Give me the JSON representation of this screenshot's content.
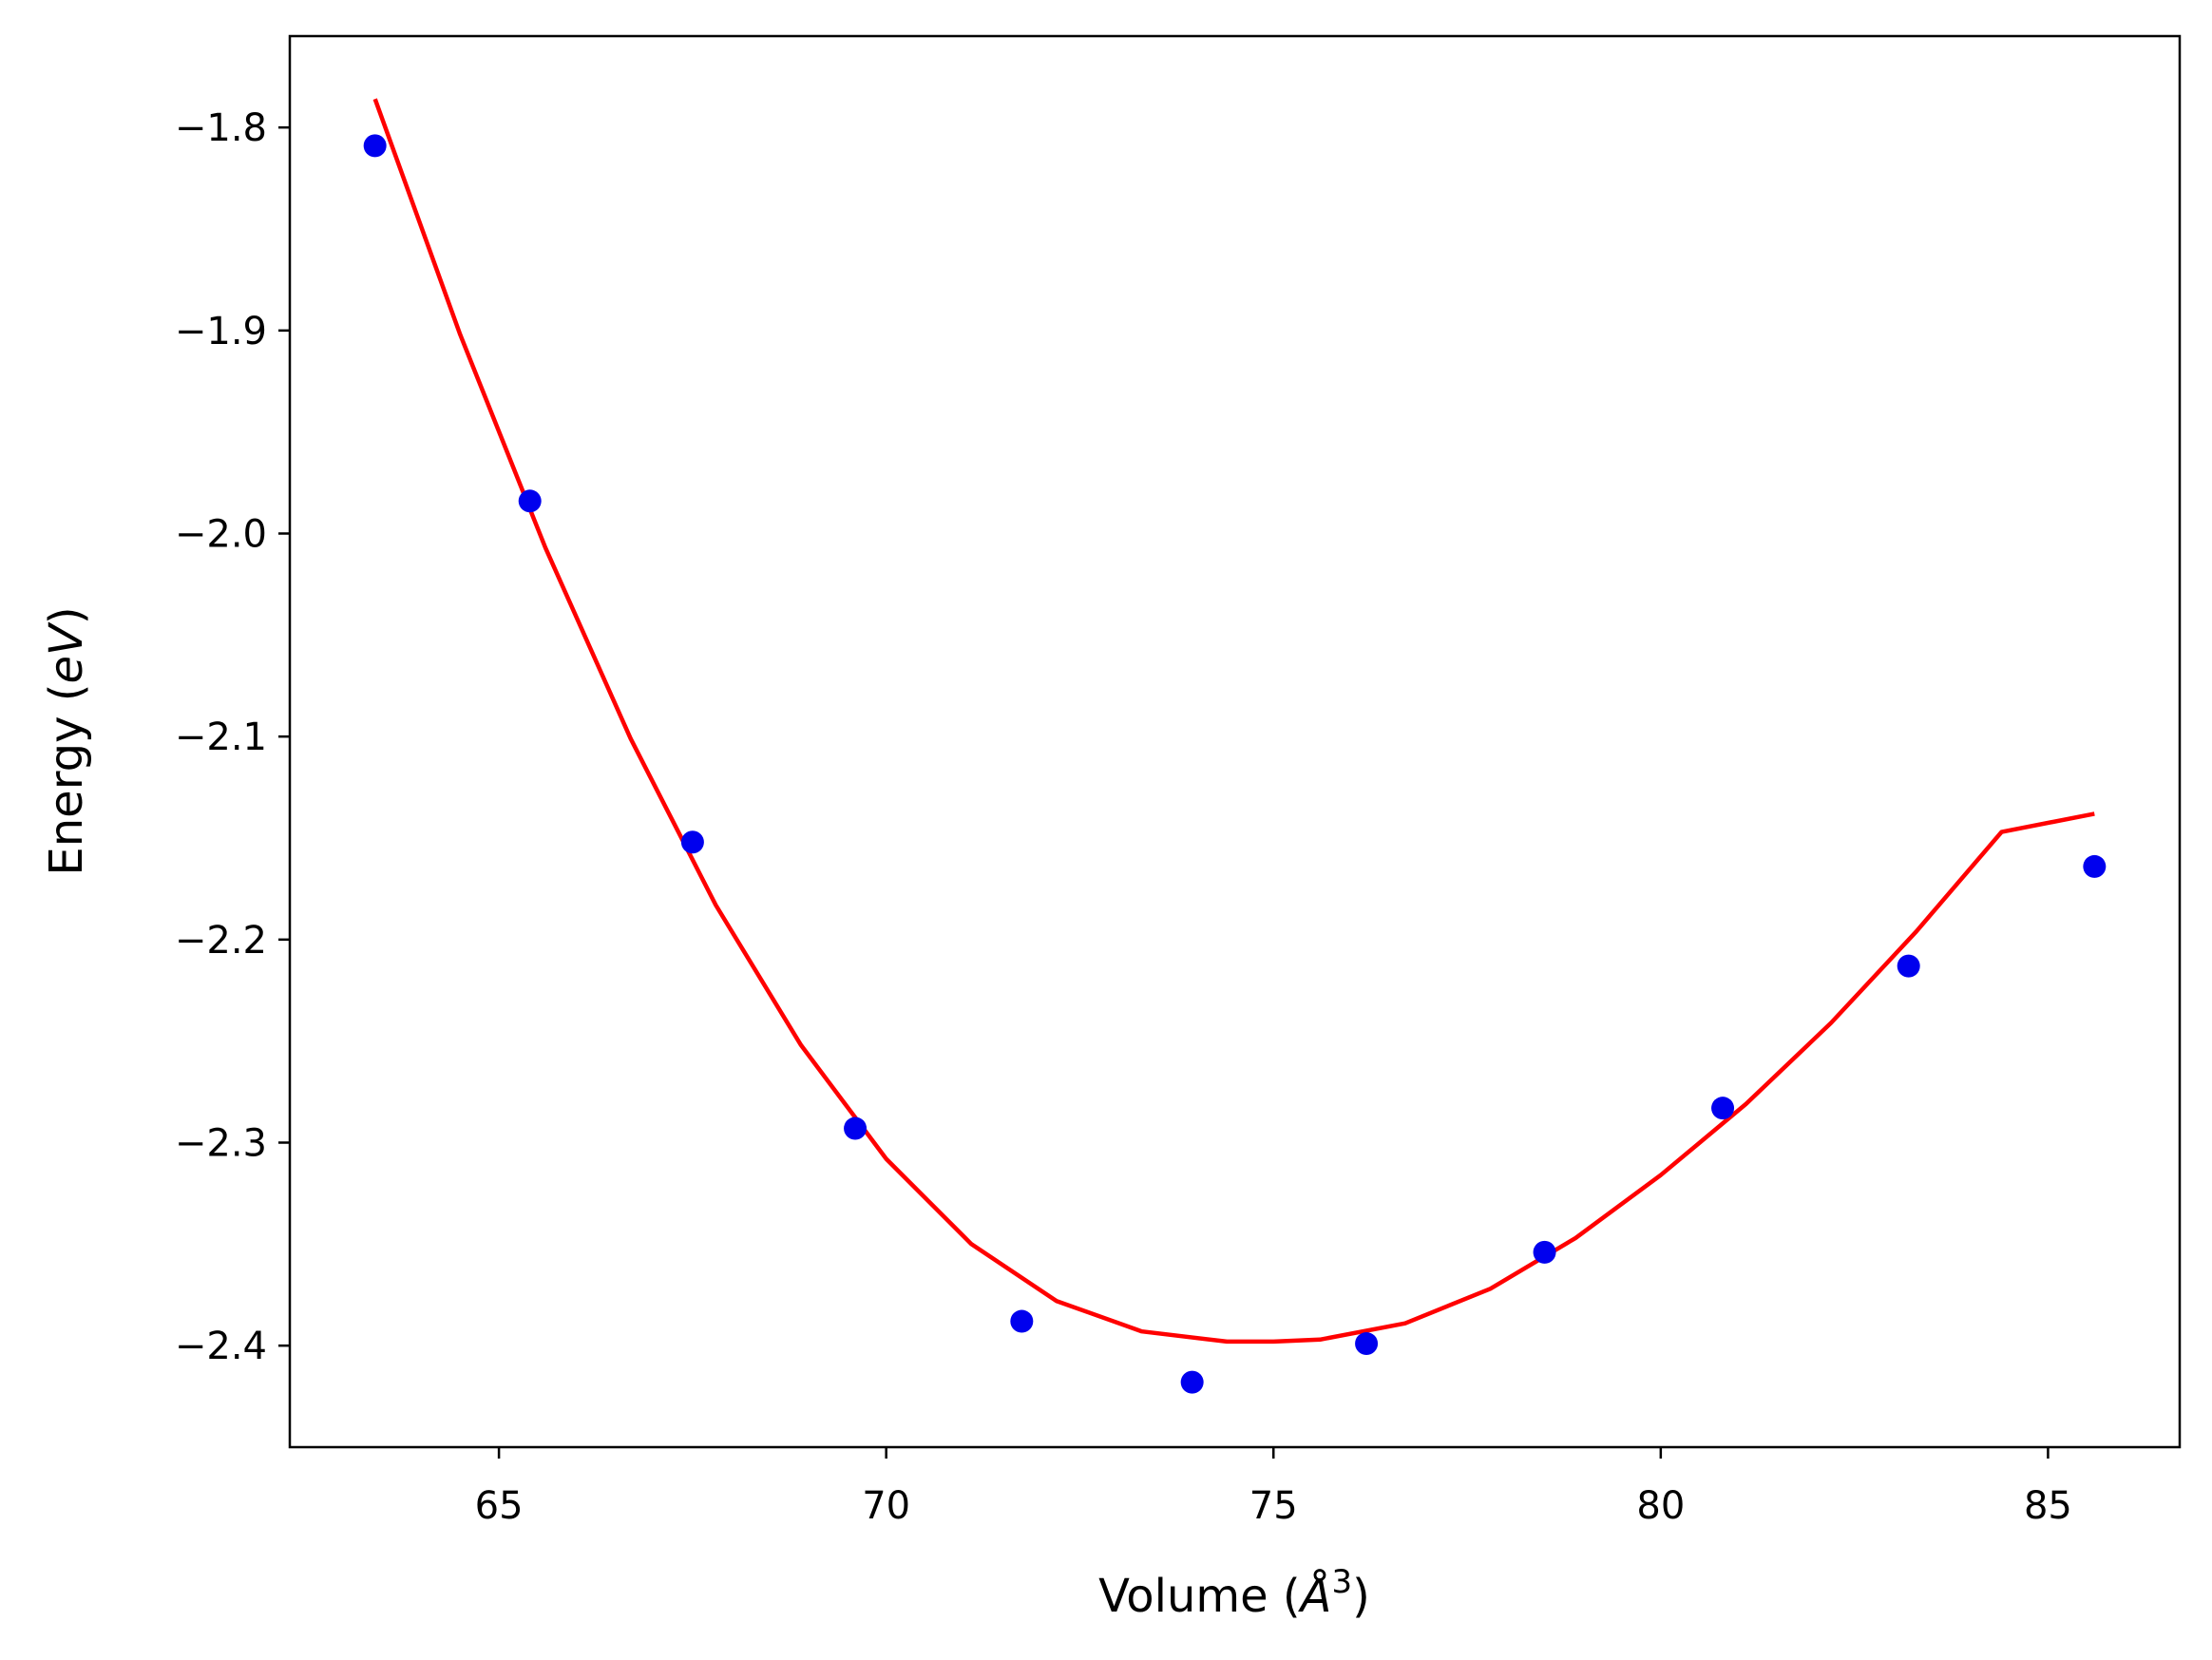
{
  "chart_data": {
    "type": "scatter",
    "xlabel": {
      "prefix": "Volume (",
      "symbol": "Å",
      "superscript": "3",
      "suffix": ")"
    },
    "ylabel": {
      "prefix": "Energy (",
      "symbol": "eV",
      "suffix": ")"
    },
    "xlim": [
      62.3,
      86.7
    ],
    "ylim": [
      -2.45,
      -1.755
    ],
    "xticks": [
      65,
      70,
      75,
      80,
      85
    ],
    "xtick_labels": [
      "65",
      "70",
      "75",
      "80",
      "85"
    ],
    "yticks": [
      -1.8,
      -1.9,
      -2.0,
      -2.1,
      -2.2,
      -2.3,
      -2.4
    ],
    "ytick_labels": [
      "−1.8",
      "−1.9",
      "−2.0",
      "−2.1",
      "−2.2",
      "−2.3",
      "−2.4"
    ],
    "grid": false,
    "points": {
      "color": "#0000ee",
      "x": [
        63.4,
        65.4,
        67.5,
        69.6,
        71.75,
        73.95,
        76.2,
        78.5,
        80.8,
        83.2,
        85.6
      ],
      "y": [
        -1.809,
        -1.984,
        -2.152,
        -2.293,
        -2.388,
        -2.418,
        -2.399,
        -2.354,
        -2.283,
        -2.213,
        -2.164
      ]
    },
    "fit": {
      "color": "#ff0000",
      "x": [
        63.4,
        64.5,
        65.6,
        66.7,
        67.8,
        68.9,
        70.0,
        71.1,
        72.2,
        73.3,
        74.4,
        75.0,
        75.6,
        76.7,
        77.8,
        78.9,
        80.0,
        81.1,
        82.2,
        83.3,
        84.4,
        85.6
      ],
      "y": [
        -1.786,
        -1.902,
        -2.007,
        -2.101,
        -2.183,
        -2.252,
        -2.308,
        -2.35,
        -2.378,
        -2.393,
        -2.398,
        -2.398,
        -2.397,
        -2.389,
        -2.372,
        -2.347,
        -2.316,
        -2.281,
        -2.241,
        -2.196,
        -2.147,
        -2.138
      ]
    }
  }
}
